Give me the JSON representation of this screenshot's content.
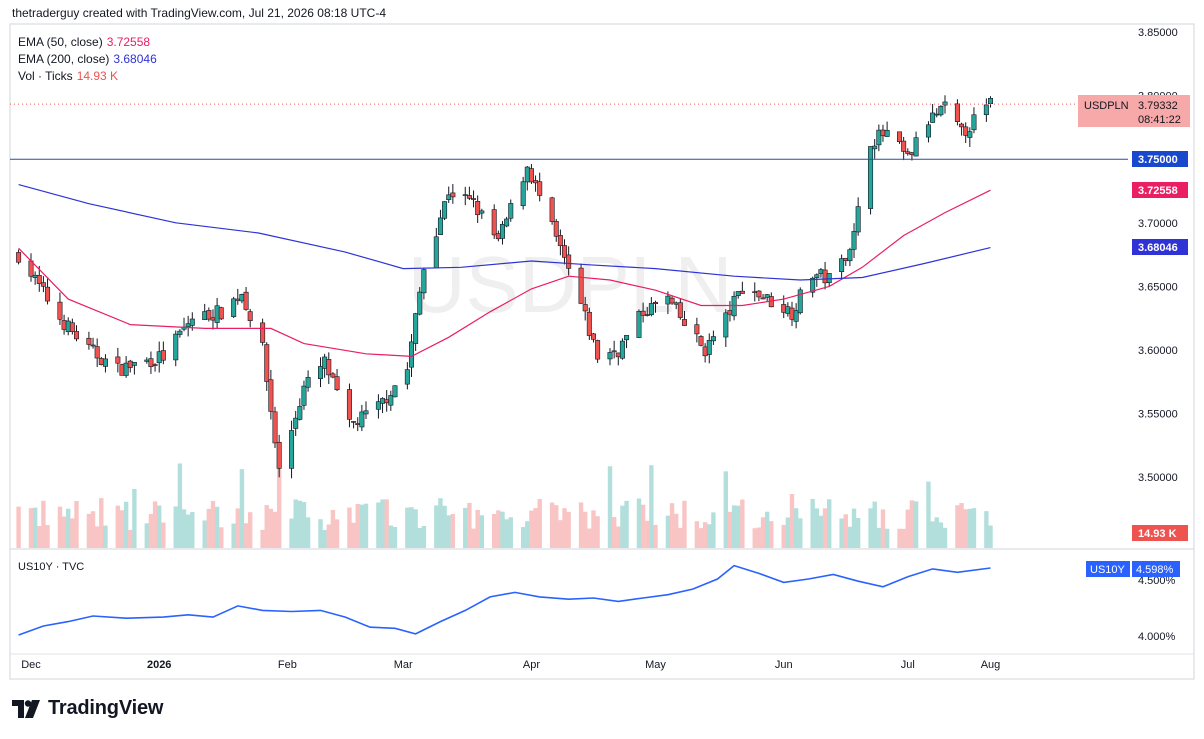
{
  "header": {
    "attribution": "thetraderguy created with TradingView.com, Jul 21, 2026 08:18 UTC-4"
  },
  "legend": {
    "ema50_label": "EMA (50, close)",
    "ema50_value": "3.72558",
    "ema200_label": "EMA (200, close)",
    "ema200_value": "3.68046",
    "vol_label": "Vol · Ticks",
    "vol_value": "14.93 K"
  },
  "watermark": "USDPLN",
  "price_axis": {
    "ticks": [
      "3.85000",
      "3.80000",
      "3.75000",
      "3.70000",
      "3.65000",
      "3.60000",
      "3.55000",
      "3.50000"
    ]
  },
  "tags": {
    "symbol": "USDPLN",
    "price": "3.79332",
    "countdown": "08:41:22",
    "hline": "3.75000",
    "ema50": "3.72558",
    "ema200": "3.68046",
    "vol": "14.93 K"
  },
  "lower_pane": {
    "title": "US10Y · TVC",
    "tag_symbol": "US10Y",
    "tag_value": "4.598%",
    "ticks": [
      "4.500%",
      "4.000%"
    ]
  },
  "time_axis": [
    "Dec",
    "2026",
    "Feb",
    "Mar",
    "Apr",
    "May",
    "Jun",
    "Jul",
    "Aug"
  ],
  "footer": {
    "brand": "TradingView"
  },
  "colors": {
    "up": "#26a69a",
    "down": "#ef5350",
    "ema50": "#e91e63",
    "ema200": "#2f33d6",
    "hline": "#2a4fa3",
    "us10y": "#2962ff"
  },
  "chart_data": [
    {
      "type": "candlestick",
      "symbol": "USDPLN",
      "timeframe": "daily",
      "ylim": [
        3.47,
        3.86
      ],
      "horizontal_line": 3.75,
      "x": [
        "2025-12-01",
        "2026-01-01",
        "2026-02-01",
        "2026-03-01",
        "2026-04-01",
        "2026-05-01",
        "2026-06-01",
        "2026-07-01",
        "2026-07-21"
      ],
      "close_path": [
        {
          "date": "2025-11-28",
          "close": 3.675
        },
        {
          "date": "2025-12-02",
          "close": 3.655
        },
        {
          "date": "2025-12-08",
          "close": 3.625
        },
        {
          "date": "2025-12-15",
          "close": 3.6
        },
        {
          "date": "2025-12-22",
          "close": 3.585
        },
        {
          "date": "2026-01-02",
          "close": 3.595
        },
        {
          "date": "2026-01-09",
          "close": 3.625
        },
        {
          "date": "2026-01-16",
          "close": 3.63
        },
        {
          "date": "2026-01-21",
          "close": 3.645
        },
        {
          "date": "2026-01-26",
          "close": 3.6
        },
        {
          "date": "2026-01-30",
          "close": 3.505
        },
        {
          "date": "2026-02-05",
          "close": 3.57
        },
        {
          "date": "2026-02-10",
          "close": 3.59
        },
        {
          "date": "2026-02-16",
          "close": 3.54
        },
        {
          "date": "2026-02-23",
          "close": 3.555
        },
        {
          "date": "2026-03-02",
          "close": 3.585
        },
        {
          "date": "2026-03-06",
          "close": 3.665
        },
        {
          "date": "2026-03-12",
          "close": 3.725
        },
        {
          "date": "2026-03-18",
          "close": 3.715
        },
        {
          "date": "2026-03-24",
          "close": 3.685
        },
        {
          "date": "2026-03-31",
          "close": 3.745
        },
        {
          "date": "2026-04-06",
          "close": 3.695
        },
        {
          "date": "2026-04-12",
          "close": 3.645
        },
        {
          "date": "2026-04-17",
          "close": 3.595
        },
        {
          "date": "2026-04-22",
          "close": 3.6
        },
        {
          "date": "2026-04-28",
          "close": 3.63
        },
        {
          "date": "2026-05-04",
          "close": 3.64
        },
        {
          "date": "2026-05-08",
          "close": 3.62
        },
        {
          "date": "2026-05-13",
          "close": 3.6
        },
        {
          "date": "2026-05-18",
          "close": 3.625
        },
        {
          "date": "2026-05-22",
          "close": 3.65
        },
        {
          "date": "2026-05-28",
          "close": 3.64
        },
        {
          "date": "2026-06-03",
          "close": 3.63
        },
        {
          "date": "2026-06-08",
          "close": 3.66
        },
        {
          "date": "2026-06-13",
          "close": 3.655
        },
        {
          "date": "2026-06-18",
          "close": 3.69
        },
        {
          "date": "2026-06-22",
          "close": 3.765
        },
        {
          "date": "2026-06-26",
          "close": 3.77
        },
        {
          "date": "2026-07-01",
          "close": 3.75
        },
        {
          "date": "2026-07-06",
          "close": 3.78
        },
        {
          "date": "2026-07-10",
          "close": 3.79
        },
        {
          "date": "2026-07-14",
          "close": 3.77
        },
        {
          "date": "2026-07-21",
          "close": 3.7933
        }
      ],
      "series": [
        {
          "name": "EMA (50, close)",
          "points": [
            {
              "date": "2025-11-28",
              "value": 3.68
            },
            {
              "date": "2025-12-10",
              "value": 3.64
            },
            {
              "date": "2025-12-25",
              "value": 3.62
            },
            {
              "date": "2026-01-12",
              "value": 3.617
            },
            {
              "date": "2026-01-28",
              "value": 3.617
            },
            {
              "date": "2026-02-05",
              "value": 3.605
            },
            {
              "date": "2026-02-20",
              "value": 3.597
            },
            {
              "date": "2026-03-03",
              "value": 3.595
            },
            {
              "date": "2026-03-12",
              "value": 3.61
            },
            {
              "date": "2026-03-22",
              "value": 3.63
            },
            {
              "date": "2026-04-01",
              "value": 3.648
            },
            {
              "date": "2026-04-10",
              "value": 3.658
            },
            {
              "date": "2026-04-20",
              "value": 3.655
            },
            {
              "date": "2026-05-01",
              "value": 3.647
            },
            {
              "date": "2026-05-12",
              "value": 3.635
            },
            {
              "date": "2026-05-22",
              "value": 3.635
            },
            {
              "date": "2026-06-01",
              "value": 3.64
            },
            {
              "date": "2026-06-12",
              "value": 3.65
            },
            {
              "date": "2026-06-20",
              "value": 3.665
            },
            {
              "date": "2026-06-30",
              "value": 3.69
            },
            {
              "date": "2026-07-10",
              "value": 3.708
            },
            {
              "date": "2026-07-21",
              "value": 3.7256
            }
          ]
        },
        {
          "name": "EMA (200, close)",
          "points": [
            {
              "date": "2025-11-28",
              "value": 3.73
            },
            {
              "date": "2025-12-15",
              "value": 3.715
            },
            {
              "date": "2026-01-05",
              "value": 3.7
            },
            {
              "date": "2026-01-25",
              "value": 3.692
            },
            {
              "date": "2026-02-15",
              "value": 3.677
            },
            {
              "date": "2026-03-01",
              "value": 3.664
            },
            {
              "date": "2026-03-15",
              "value": 3.665
            },
            {
              "date": "2026-04-01",
              "value": 3.67
            },
            {
              "date": "2026-04-15",
              "value": 3.667
            },
            {
              "date": "2026-05-01",
              "value": 3.664
            },
            {
              "date": "2026-05-20",
              "value": 3.658
            },
            {
              "date": "2026-06-05",
              "value": 3.655
            },
            {
              "date": "2026-06-20",
              "value": 3.657
            },
            {
              "date": "2026-07-05",
              "value": 3.668
            },
            {
              "date": "2026-07-21",
              "value": 3.6805
            }
          ]
        }
      ],
      "volume_last": "14.93 K"
    },
    {
      "type": "line",
      "symbol": "US10Y",
      "ylim": [
        3.95,
        4.7
      ],
      "points": [
        {
          "date": "2025-11-28",
          "value": 4.0
        },
        {
          "date": "2025-12-04",
          "value": 4.08
        },
        {
          "date": "2025-12-10",
          "value": 4.12
        },
        {
          "date": "2025-12-16",
          "value": 4.17
        },
        {
          "date": "2025-12-24",
          "value": 4.15
        },
        {
          "date": "2026-01-02",
          "value": 4.16
        },
        {
          "date": "2026-01-08",
          "value": 4.18
        },
        {
          "date": "2026-01-14",
          "value": 4.16
        },
        {
          "date": "2026-01-20",
          "value": 4.26
        },
        {
          "date": "2026-01-26",
          "value": 4.22
        },
        {
          "date": "2026-02-02",
          "value": 4.21
        },
        {
          "date": "2026-02-09",
          "value": 4.22
        },
        {
          "date": "2026-02-15",
          "value": 4.16
        },
        {
          "date": "2026-02-21",
          "value": 4.07
        },
        {
          "date": "2026-02-27",
          "value": 4.06
        },
        {
          "date": "2026-03-04",
          "value": 4.01
        },
        {
          "date": "2026-03-10",
          "value": 4.12
        },
        {
          "date": "2026-03-16",
          "value": 4.22
        },
        {
          "date": "2026-03-22",
          "value": 4.34
        },
        {
          "date": "2026-03-28",
          "value": 4.38
        },
        {
          "date": "2026-04-03",
          "value": 4.34
        },
        {
          "date": "2026-04-10",
          "value": 4.32
        },
        {
          "date": "2026-04-16",
          "value": 4.33
        },
        {
          "date": "2026-04-22",
          "value": 4.3
        },
        {
          "date": "2026-04-28",
          "value": 4.33
        },
        {
          "date": "2026-05-04",
          "value": 4.36
        },
        {
          "date": "2026-05-10",
          "value": 4.41
        },
        {
          "date": "2026-05-16",
          "value": 4.5
        },
        {
          "date": "2026-05-20",
          "value": 4.62
        },
        {
          "date": "2026-05-26",
          "value": 4.55
        },
        {
          "date": "2026-06-01",
          "value": 4.47
        },
        {
          "date": "2026-06-07",
          "value": 4.5
        },
        {
          "date": "2026-06-13",
          "value": 4.54
        },
        {
          "date": "2026-06-19",
          "value": 4.48
        },
        {
          "date": "2026-06-25",
          "value": 4.43
        },
        {
          "date": "2026-07-01",
          "value": 4.52
        },
        {
          "date": "2026-07-07",
          "value": 4.59
        },
        {
          "date": "2026-07-13",
          "value": 4.56
        },
        {
          "date": "2026-07-21",
          "value": 4.598
        }
      ]
    }
  ]
}
